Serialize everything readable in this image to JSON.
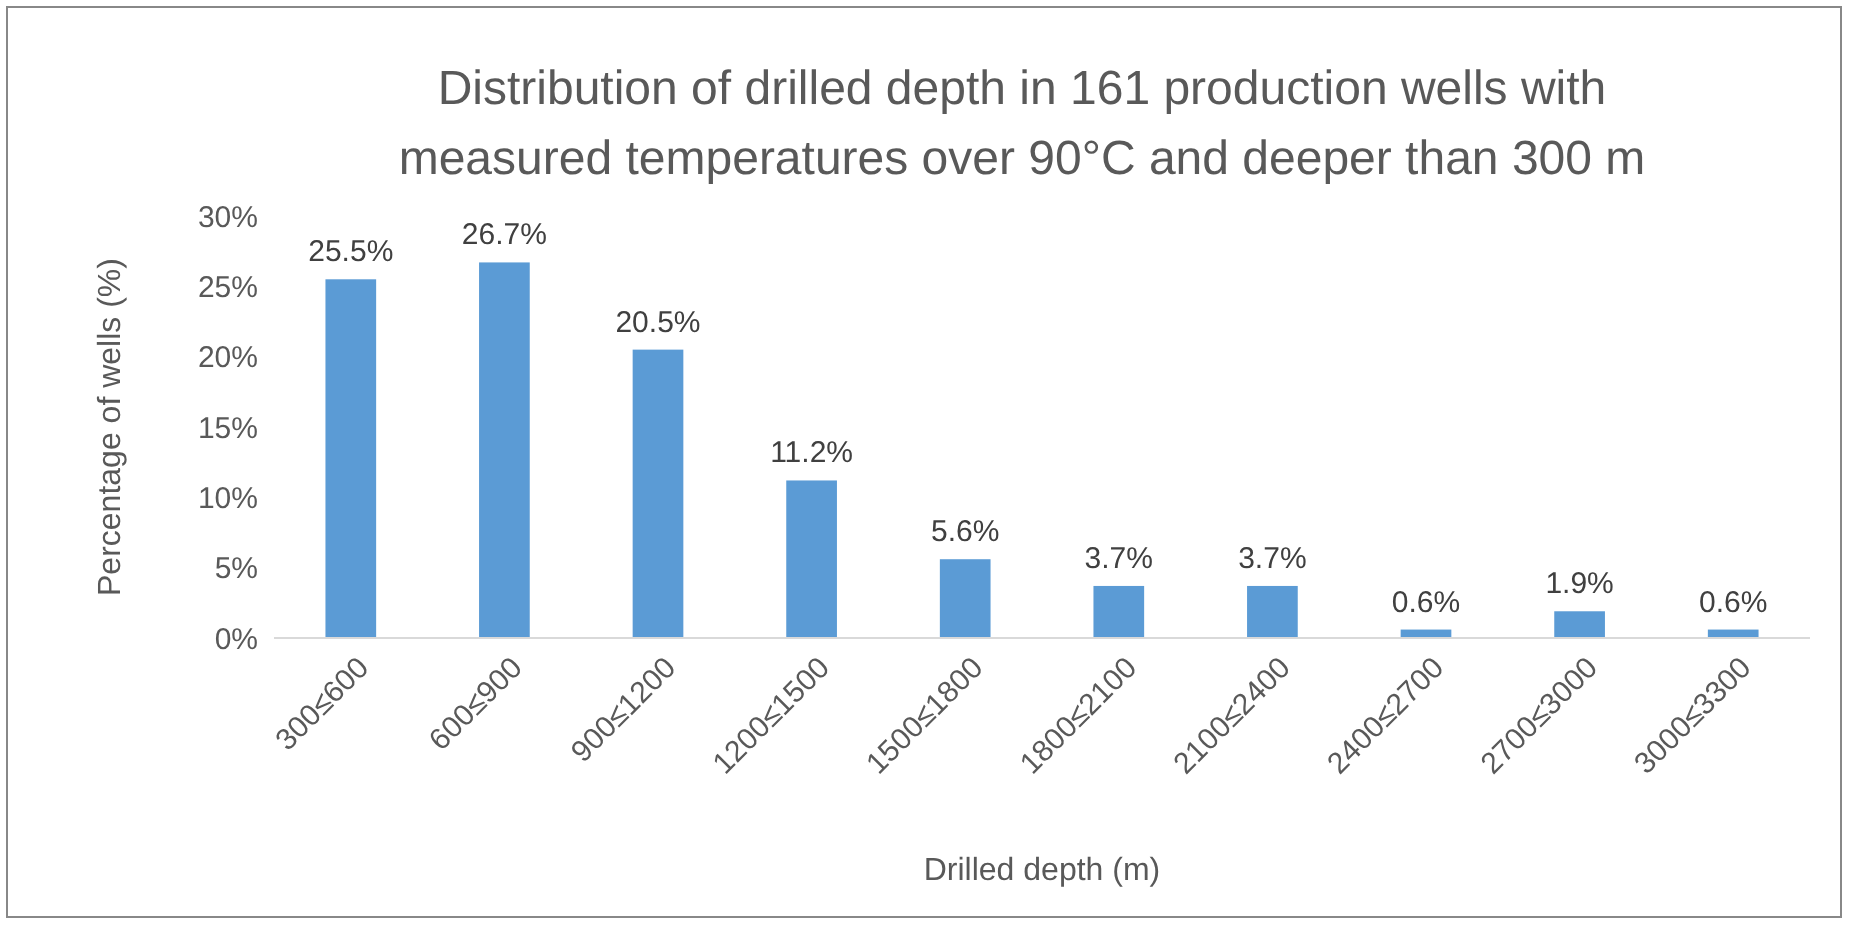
{
  "chart_data": {
    "type": "bar",
    "title": "Distribution of drilled depth in 161 production wells with measured temperatures over 90°C and deeper than 300 m",
    "xlabel": "Drilled depth (m)",
    "ylabel": "Percentage of wells (%)",
    "categories": [
      "300≤600",
      "600≤900",
      "900≤1200",
      "1200≤1500",
      "1500≤1800",
      "1800≤2100",
      "2100≤2400",
      "2400≤2700",
      "2700≤3000",
      "3000≤3300"
    ],
    "values": [
      25.5,
      26.7,
      20.5,
      11.2,
      5.6,
      3.7,
      3.7,
      0.6,
      1.9,
      0.6
    ],
    "value_labels": [
      "25.5%",
      "26.7%",
      "20.5%",
      "11.2%",
      "5.6%",
      "3.7%",
      "3.7%",
      "0.6%",
      "1.9%",
      "0.6%"
    ],
    "color": "#5b9bd5",
    "ylim": [
      0,
      30
    ],
    "yticks": [
      {
        "value": 0,
        "label": "0%"
      },
      {
        "value": 5,
        "label": "5%"
      },
      {
        "value": 10,
        "label": "10%"
      },
      {
        "value": 15,
        "label": "15%"
      },
      {
        "value": 20,
        "label": "20%"
      },
      {
        "value": 25,
        "label": "25%"
      },
      {
        "value": 30,
        "label": "30%"
      }
    ],
    "grid": false
  }
}
